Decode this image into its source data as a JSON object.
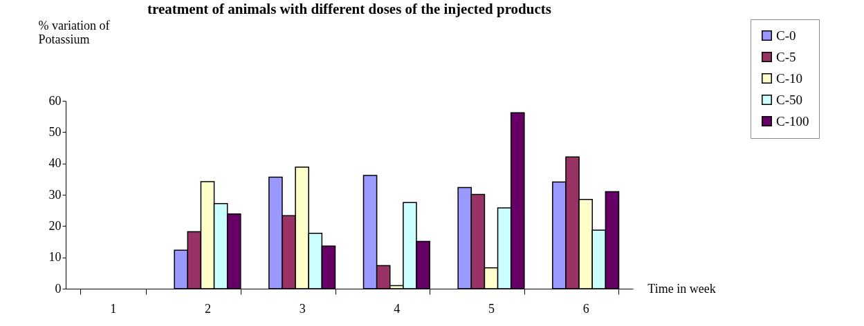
{
  "chart_data": {
    "type": "bar",
    "title": "treatment of animals with different doses of the injected products",
    "ylabel": "% variation  of\nPotassium",
    "xlabel": "Time in week",
    "categories": [
      "1",
      "2",
      "3",
      "4",
      "5",
      "6"
    ],
    "series": [
      {
        "name": "C-0",
        "color": "#9999ff",
        "values": [
          null,
          12.3,
          35.6,
          36.2,
          32.3,
          34.1
        ]
      },
      {
        "name": "C-5",
        "color": "#993366",
        "values": [
          null,
          18.2,
          23.3,
          7.4,
          30.1,
          42.1
        ]
      },
      {
        "name": "C-10",
        "color": "#ffffcc",
        "values": [
          null,
          34.2,
          38.8,
          1.0,
          6.7,
          28.5
        ]
      },
      {
        "name": "C-50",
        "color": "#ccffff",
        "values": [
          null,
          27.2,
          17.7,
          27.5,
          25.8,
          18.7
        ]
      },
      {
        "name": "C-100",
        "color": "#660066",
        "values": [
          null,
          23.9,
          13.6,
          15.1,
          56.2,
          31.0
        ]
      }
    ],
    "ylim": [
      0,
      60
    ],
    "yticks": [
      0,
      10,
      20,
      30,
      40,
      50,
      60
    ],
    "grid": false,
    "legend": "top right"
  }
}
